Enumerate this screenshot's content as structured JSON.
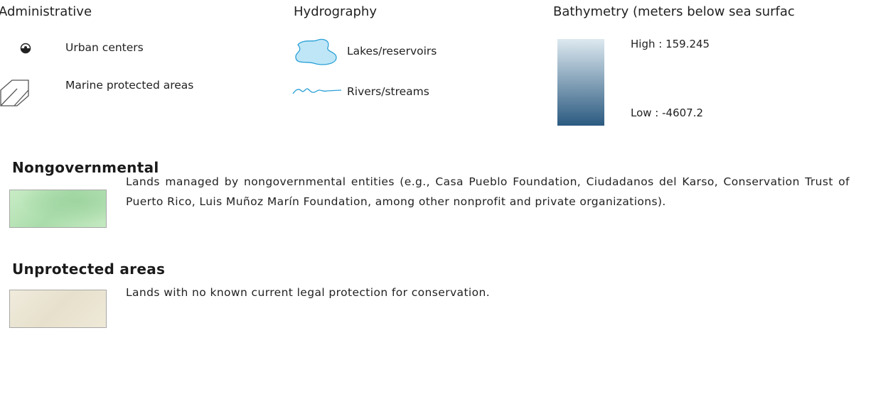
{
  "legend": {
    "administrative": {
      "title": "Administrative",
      "items": [
        "Urban centers",
        "Marine protected areas"
      ]
    },
    "hydrography": {
      "title": "Hydrography",
      "items": [
        "Lakes/reservoirs",
        "Rivers/streams"
      ]
    },
    "bathymetry": {
      "title": "Bathymetry (meters below sea surfac",
      "high": "High : 159.245",
      "low": "Low : -4607.2"
    }
  },
  "sections": [
    {
      "title": "Nongovernmental",
      "text": "Lands managed by nongovernmental entities (e.g., Casa Pueblo Foundation, Ciudadanos del Karso, Conservation Trust of Puerto Rico, Luis Muñoz Marín Foundation, among other nonprofit and private organizations)."
    },
    {
      "title": "Unprotected areas",
      "text": "Lands with no known current legal protection for conservation."
    }
  ]
}
